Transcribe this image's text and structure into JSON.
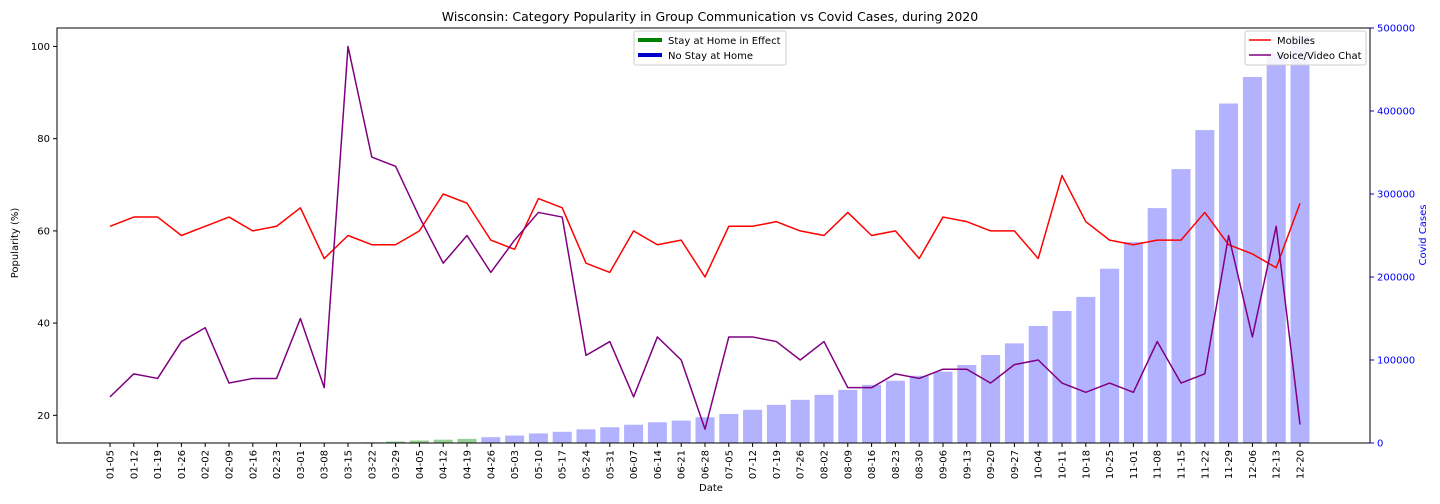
{
  "chart_data": {
    "type": "bar+line",
    "title": "Wisconsin: Category Popularity in Group Communication vs Covid Cases, during 2020",
    "xlabel": "Date",
    "ylabel": "Popularity (%)",
    "y2label": "Covid Cases",
    "ylim": [
      14,
      104
    ],
    "y2lim": [
      0,
      500000
    ],
    "yticks": [
      20,
      40,
      60,
      80,
      100
    ],
    "y2ticks": [
      0,
      100000,
      200000,
      300000,
      400000,
      500000
    ],
    "grid": false,
    "categories": [
      "01-05",
      "01-12",
      "01-19",
      "01-26",
      "02-02",
      "02-09",
      "02-16",
      "02-23",
      "03-01",
      "03-08",
      "03-15",
      "03-22",
      "03-29",
      "04-05",
      "04-12",
      "04-19",
      "04-26",
      "05-03",
      "05-10",
      "05-17",
      "05-24",
      "05-31",
      "06-07",
      "06-14",
      "06-21",
      "06-28",
      "07-05",
      "07-12",
      "07-19",
      "07-26",
      "08-02",
      "08-09",
      "08-16",
      "08-23",
      "08-30",
      "09-06",
      "09-13",
      "09-20",
      "09-27",
      "10-04",
      "10-11",
      "10-18",
      "10-25",
      "11-01",
      "11-08",
      "11-15",
      "11-22",
      "11-29",
      "12-06",
      "12-13",
      "12-20"
    ],
    "series": [
      {
        "name": "Mobiles",
        "color": "#ff0000",
        "values": [
          61,
          63,
          63,
          59,
          61,
          63,
          60,
          61,
          65,
          54,
          59,
          57,
          57,
          60,
          68,
          66,
          58,
          56,
          67,
          65,
          53,
          51,
          60,
          57,
          58,
          50,
          61,
          61,
          62,
          60,
          59,
          64,
          59,
          60,
          54,
          63,
          62,
          60,
          60,
          54,
          72,
          62,
          58,
          57,
          58,
          58,
          64,
          57,
          55,
          52,
          66
        ]
      },
      {
        "name": "Voice/Video Chat",
        "color": "#800080",
        "values": [
          24,
          29,
          28,
          36,
          39,
          27,
          28,
          28,
          41,
          26,
          100,
          76,
          74,
          63,
          53,
          59,
          51,
          58,
          64,
          63,
          33,
          36,
          24,
          37,
          32,
          17,
          37,
          37,
          36,
          32,
          36,
          26,
          26,
          29,
          28,
          30,
          30,
          27,
          31,
          32,
          27,
          25,
          27,
          25,
          36,
          27,
          29,
          59,
          37,
          61,
          18
        ]
      }
    ],
    "cases": {
      "values": [
        0,
        0,
        0,
        0,
        0,
        0,
        0,
        0,
        0,
        0,
        200,
        800,
        1800,
        3000,
        4000,
        5000,
        7000,
        9000,
        11500,
        13500,
        16500,
        19000,
        22000,
        25000,
        27000,
        31000,
        35000,
        40000,
        46000,
        52000,
        58000,
        64000,
        70000,
        75000,
        81000,
        86000,
        94000,
        106000,
        120000,
        141000,
        159000,
        176000,
        210000,
        242000,
        283000,
        330000,
        377000,
        409000,
        441000,
        469000,
        491000
      ],
      "stay_at_home": [
        false,
        false,
        false,
        false,
        false,
        false,
        false,
        false,
        false,
        false,
        false,
        true,
        true,
        true,
        true,
        true,
        false,
        false,
        false,
        false,
        false,
        false,
        false,
        false,
        false,
        false,
        false,
        false,
        false,
        false,
        false,
        false,
        false,
        false,
        false,
        false,
        false,
        false,
        false,
        false,
        false,
        false,
        false,
        false,
        false,
        false,
        false,
        false,
        false,
        false,
        false
      ],
      "stay_color": "#2ca02c",
      "nostay_color": "#6666ff"
    },
    "legend_left": {
      "placement": "top-center",
      "items": [
        {
          "label": "Stay at Home in Effect",
          "color": "#008000"
        },
        {
          "label": "No Stay at Home",
          "color": "#0000cc"
        }
      ]
    },
    "legend_right": {
      "placement": "top-right",
      "items": [
        {
          "label": "Mobiles",
          "color": "#ff0000"
        },
        {
          "label": "Voice/Video Chat",
          "color": "#800080"
        }
      ]
    },
    "axis2_color": "#0000ff"
  }
}
